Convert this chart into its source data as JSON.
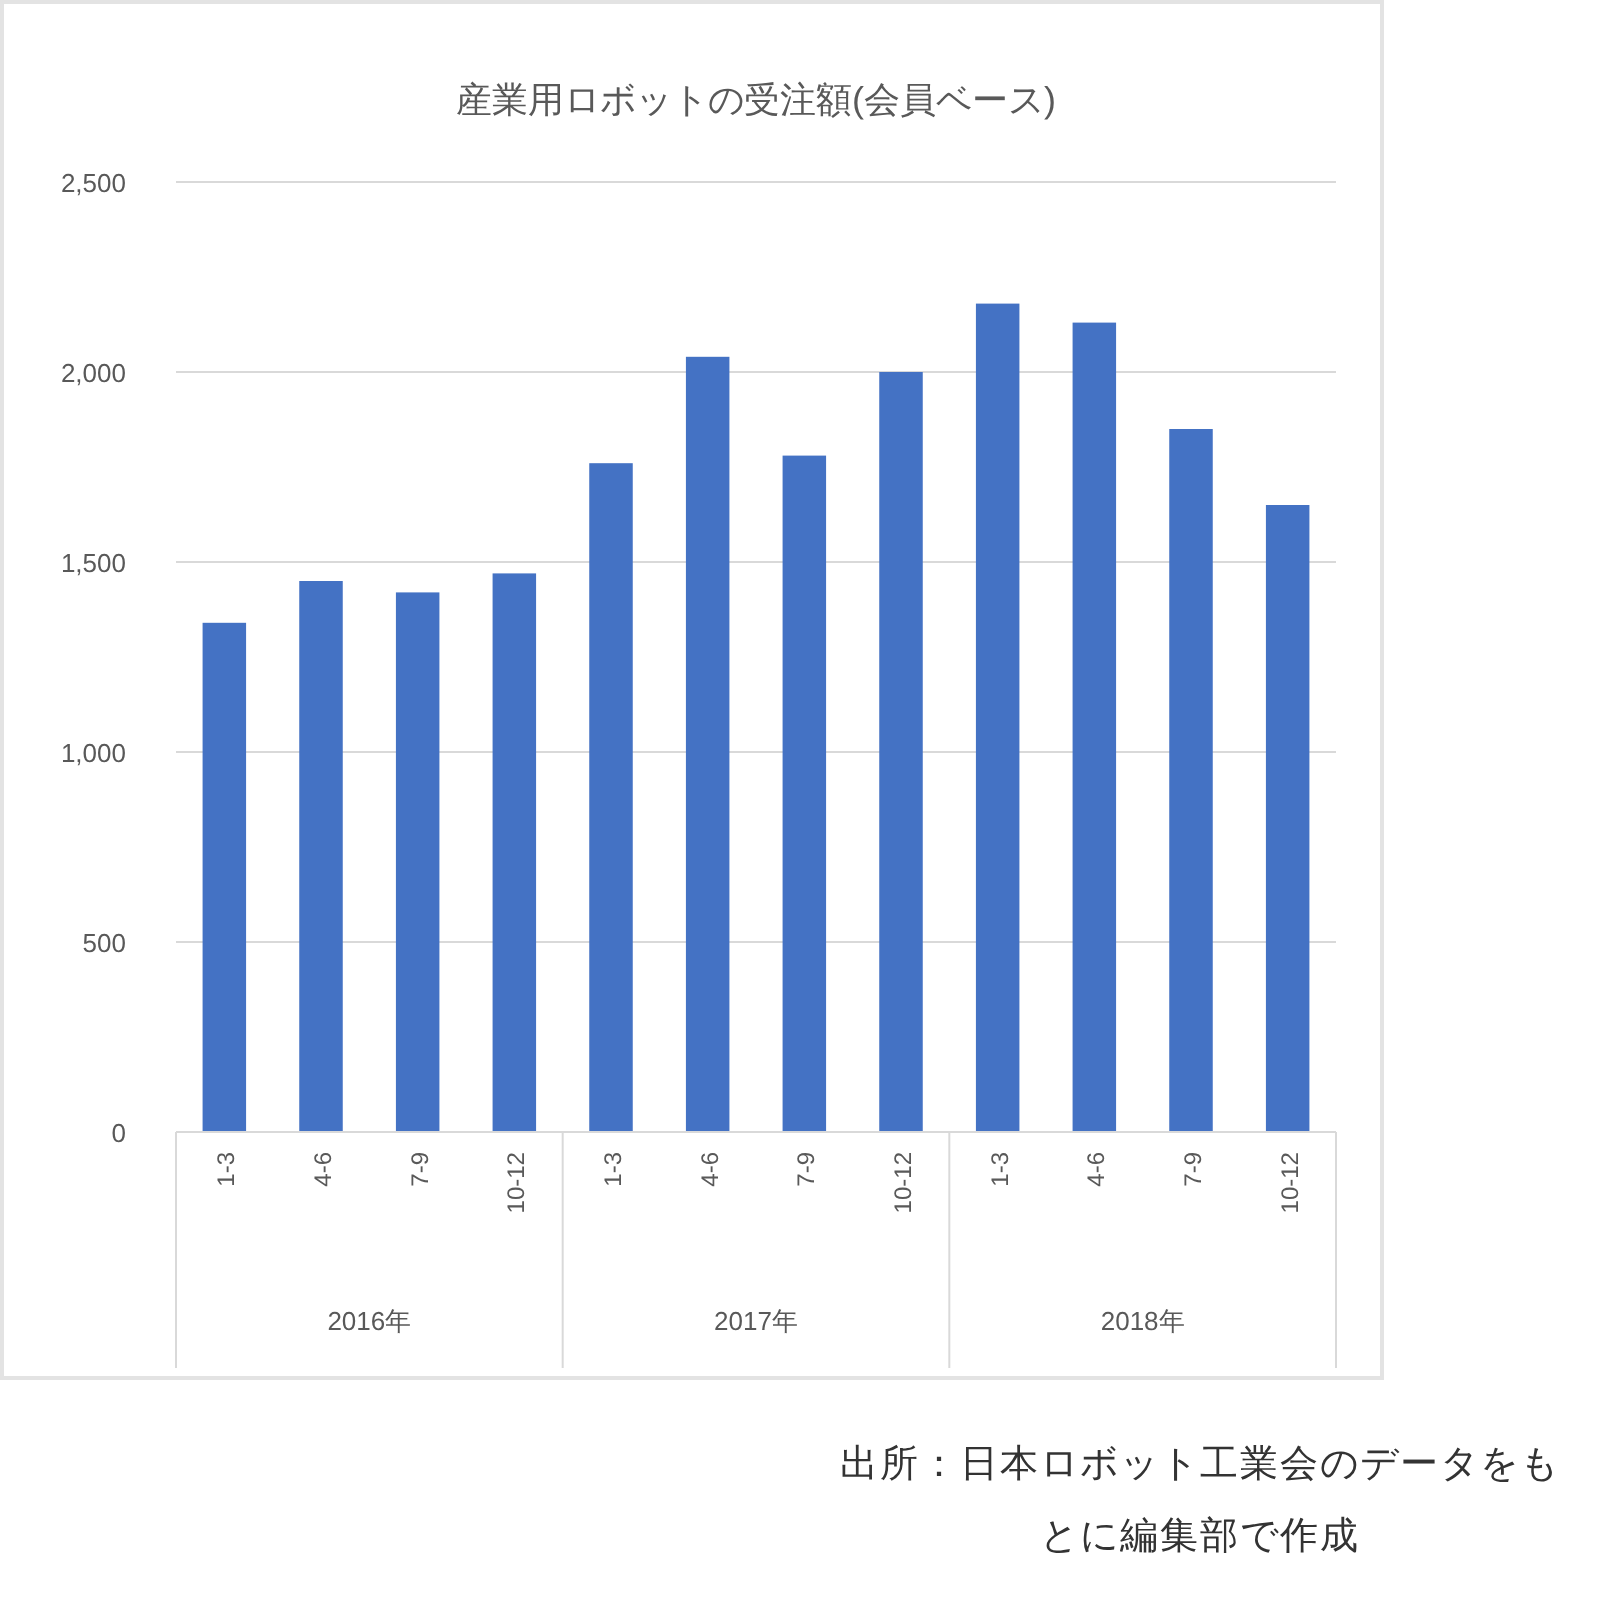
{
  "chart_data": {
    "type": "bar",
    "title": "産業用ロボットの受注額(会員ベース)",
    "categories": [
      "1-3",
      "4-6",
      "7-9",
      "10-12",
      "1-3",
      "4-6",
      "7-9",
      "10-12",
      "1-3",
      "4-6",
      "7-9",
      "10-12"
    ],
    "values": [
      1340,
      1450,
      1420,
      1470,
      1760,
      2040,
      1780,
      2000,
      2180,
      2130,
      1850,
      1650
    ],
    "color": "#4472c4",
    "ylim": [
      0,
      2500
    ],
    "yticks": [
      {
        "value": 0,
        "label": "0"
      },
      {
        "value": 500,
        "label": "500"
      },
      {
        "value": 1000,
        "label": "1,000"
      },
      {
        "value": 1500,
        "label": "1,500"
      },
      {
        "value": 2000,
        "label": "2,000"
      },
      {
        "value": 2500,
        "label": "2,500"
      }
    ],
    "grid": "y",
    "annotations": [
      "2016年",
      "2017年",
      "2018年",
      "出所：日本ロボット工業会のデータをもとに編集部で作成"
    ]
  }
}
